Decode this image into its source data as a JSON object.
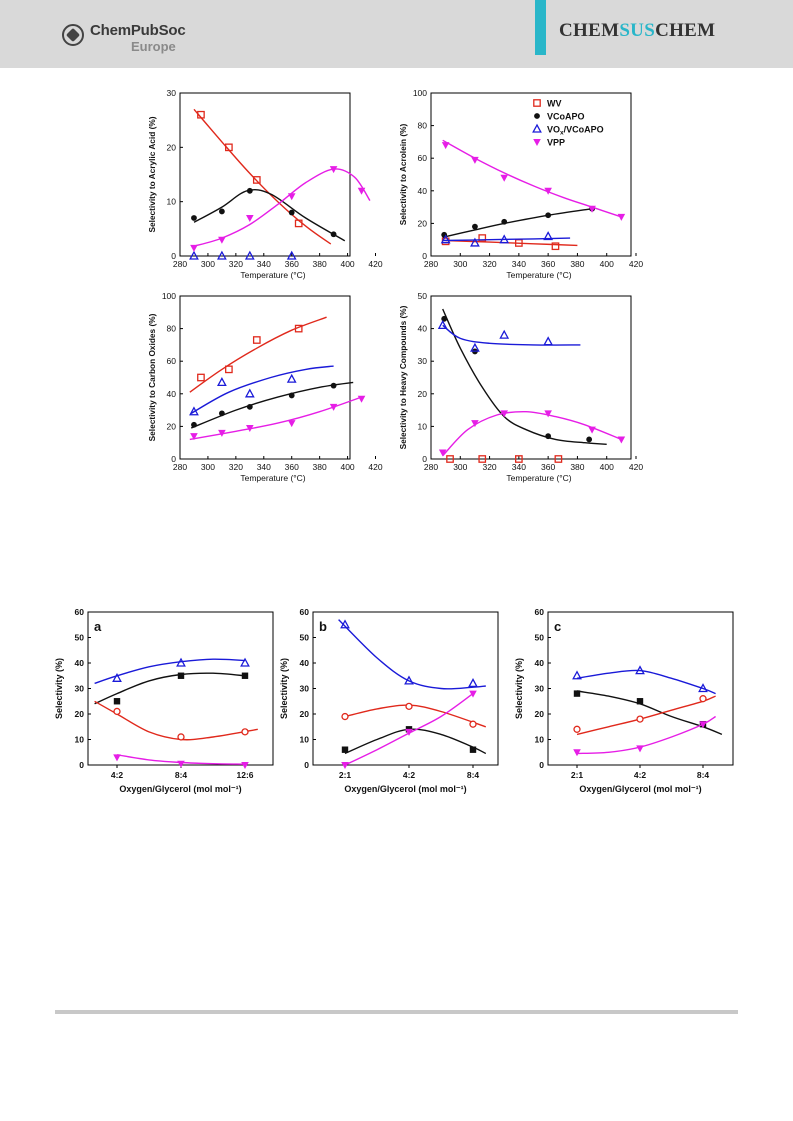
{
  "header": {
    "brand_top": "ChemPubSoc",
    "brand_bottom": "Europe",
    "journal_left": "CHEM",
    "journal_mid": "SUS",
    "journal_right": "CHEM",
    "accent_color": "#29b6c9"
  },
  "chart_data": [
    {
      "id": "acrylic",
      "type": "scatter",
      "xlabel": "Temperature (°C)",
      "ylabel": "Selectivity to Acrylic Acid (%)",
      "xlim": [
        280,
        420
      ],
      "ylim": [
        0,
        30
      ],
      "xticks": [
        280,
        300,
        320,
        340,
        360,
        380,
        400,
        420
      ],
      "yticks": [
        0,
        10,
        20,
        30
      ],
      "series": [
        {
          "name": "WV",
          "marker": "open-square",
          "color": "#e0291c",
          "x": [
            295,
            315,
            335,
            365
          ],
          "y": [
            26,
            20,
            14,
            6
          ],
          "fit_x": [
            290,
            310,
            330,
            350,
            370,
            388
          ],
          "fit_y": [
            27,
            21,
            15.2,
            10,
            5.5,
            2.2
          ]
        },
        {
          "name": "VCoAPO",
          "marker": "filled-circle",
          "color": "#111111",
          "x": [
            290,
            310,
            330,
            360,
            390
          ],
          "y": [
            7,
            8.2,
            12,
            8,
            4
          ],
          "fit_x": [
            290,
            310,
            328,
            345,
            370,
            398
          ],
          "fit_y": [
            6.2,
            9,
            12,
            11.4,
            7,
            2.8
          ]
        },
        {
          "name": "VOx/VCoAPO",
          "marker": "open-triangle",
          "color": "#1a1ad8",
          "x": [
            290,
            310,
            330,
            360
          ],
          "y": [
            0,
            0,
            0,
            0
          ],
          "fit_x": [],
          "fit_y": []
        },
        {
          "name": "VPP",
          "marker": "filled-triangle-down",
          "color": "#e61ee6",
          "x": [
            290,
            310,
            330,
            360,
            390,
            410
          ],
          "y": [
            1.5,
            3,
            7,
            11,
            16,
            12
          ],
          "fit_x": [
            290,
            310,
            330,
            350,
            370,
            390,
            405,
            416
          ],
          "fit_y": [
            1.8,
            3.3,
            5.8,
            9.5,
            13.5,
            16,
            14.5,
            10.2
          ]
        }
      ]
    },
    {
      "id": "acrolein",
      "type": "scatter",
      "xlabel": "Temperature (°C)",
      "ylabel": "Selectivity to Acrolein (%)",
      "xlim": [
        280,
        420
      ],
      "ylim": [
        0,
        100
      ],
      "xticks": [
        280,
        300,
        320,
        340,
        360,
        380,
        400,
        420
      ],
      "yticks": [
        0,
        20,
        40,
        60,
        80,
        100
      ],
      "legend": "top-right",
      "series": [
        {
          "name": "WV",
          "marker": "open-square",
          "color": "#e0291c",
          "x": [
            290,
            315,
            340,
            365
          ],
          "y": [
            9,
            11,
            8,
            6
          ],
          "fit_x": [
            290,
            320,
            350,
            380
          ],
          "fit_y": [
            9.5,
            8.5,
            7.5,
            6.5
          ]
        },
        {
          "name": "VCoAPO",
          "marker": "filled-circle",
          "color": "#111111",
          "x": [
            289,
            310,
            330,
            360,
            390
          ],
          "y": [
            13,
            18,
            21,
            25,
            29
          ],
          "fit_x": [
            288,
            310,
            330,
            360,
            390
          ],
          "fit_y": [
            11.5,
            16,
            20,
            25,
            29
          ]
        },
        {
          "name": "VOx/VCoAPO",
          "marker": "open-triangle",
          "color": "#1a1ad8",
          "x": [
            290,
            310,
            330,
            360
          ],
          "y": [
            10,
            8,
            10,
            12
          ],
          "fit_x": [
            288,
            320,
            350,
            375
          ],
          "fit_y": [
            9.5,
            10,
            10.5,
            11
          ]
        },
        {
          "name": "VPP",
          "marker": "filled-triangle-down",
          "color": "#e61ee6",
          "x": [
            290,
            310,
            330,
            360,
            390,
            410
          ],
          "y": [
            68,
            59,
            48,
            40,
            29,
            24
          ],
          "fit_x": [
            288,
            310,
            330,
            350,
            370,
            390,
            410
          ],
          "fit_y": [
            71,
            60,
            51,
            43,
            36,
            30,
            24
          ]
        }
      ]
    },
    {
      "id": "carbon-oxides",
      "type": "scatter",
      "xlabel": "Temperature (°C)",
      "ylabel": "Selectivity to Carbon Oxides (%)",
      "xlim": [
        280,
        420
      ],
      "ylim": [
        0,
        100
      ],
      "xticks": [
        280,
        300,
        320,
        340,
        360,
        380,
        400,
        420
      ],
      "yticks": [
        0,
        20,
        40,
        60,
        80,
        100
      ],
      "series": [
        {
          "name": "WV",
          "marker": "open-square",
          "color": "#e0291c",
          "x": [
            295,
            315,
            335,
            365
          ],
          "y": [
            50,
            55,
            73,
            80
          ],
          "fit_x": [
            287,
            310,
            335,
            360,
            385
          ],
          "fit_y": [
            41,
            55,
            68,
            79,
            87
          ]
        },
        {
          "name": "VCoAPO",
          "marker": "filled-circle",
          "color": "#111111",
          "x": [
            290,
            310,
            330,
            360,
            390
          ],
          "y": [
            21,
            28,
            32,
            39,
            45
          ],
          "fit_x": [
            288,
            320,
            350,
            380,
            404
          ],
          "fit_y": [
            19,
            30,
            38,
            44,
            47
          ]
        },
        {
          "name": "VOx/VCoAPO",
          "marker": "open-triangle",
          "color": "#1a1ad8",
          "x": [
            290,
            310,
            330,
            360
          ],
          "y": [
            29,
            47,
            40,
            49
          ],
          "fit_x": [
            288,
            315,
            345,
            370,
            390
          ],
          "fit_y": [
            28,
            41,
            50,
            55,
            57
          ]
        },
        {
          "name": "VPP",
          "marker": "filled-triangle-down",
          "color": "#e61ee6",
          "x": [
            290,
            310,
            330,
            360,
            390,
            410
          ],
          "y": [
            14,
            16,
            19,
            22,
            32,
            37
          ],
          "fit_x": [
            287,
            320,
            350,
            380,
            410
          ],
          "fit_y": [
            12,
            17,
            22,
            29,
            38
          ]
        }
      ]
    },
    {
      "id": "heavy",
      "type": "scatter",
      "xlabel": "Temperature (°C)",
      "ylabel": "Selectivity to Heavy Compounds (%)",
      "xlim": [
        280,
        420
      ],
      "ylim": [
        0,
        50
      ],
      "xticks": [
        280,
        300,
        320,
        340,
        360,
        380,
        400,
        420
      ],
      "yticks": [
        0,
        10,
        20,
        30,
        40,
        50
      ],
      "series": [
        {
          "name": "WV",
          "marker": "open-square",
          "color": "#e0291c",
          "x": [
            293,
            315,
            340,
            367
          ],
          "y": [
            0,
            0,
            0,
            0
          ],
          "fit_x": [],
          "fit_y": []
        },
        {
          "name": "VCoAPO",
          "marker": "filled-circle",
          "color": "#111111",
          "x": [
            289,
            310,
            360,
            388
          ],
          "y": [
            43,
            33,
            7,
            6
          ],
          "fit_x": [
            288,
            300,
            315,
            330,
            345,
            365,
            385,
            400
          ],
          "fit_y": [
            46,
            34,
            22,
            13,
            9,
            6,
            5,
            4.5
          ]
        },
        {
          "name": "VOx/VCoAPO",
          "marker": "open-triangle",
          "color": "#1a1ad8",
          "x": [
            288,
            310,
            330,
            360
          ],
          "y": [
            41,
            34,
            38,
            36
          ],
          "fit_x": [
            288,
            300,
            320,
            350,
            382
          ],
          "fit_y": [
            41,
            37,
            35.5,
            35,
            35
          ]
        },
        {
          "name": "VPP",
          "marker": "filled-triangle-down",
          "color": "#e61ee6",
          "x": [
            288,
            310,
            330,
            360,
            390,
            410
          ],
          "y": [
            2,
            11,
            14,
            14,
            9,
            6
          ],
          "fit_x": [
            288,
            305,
            325,
            345,
            365,
            385,
            410
          ],
          "fit_y": [
            1,
            9,
            13.5,
            14.5,
            13,
            10.5,
            6
          ]
        }
      ]
    },
    {
      "id": "panel-a",
      "type": "scatter",
      "panel_label": "a",
      "xlabel": "Oxygen/Glycerol (mol mol⁻¹)",
      "ylabel": "Selectivity (%)",
      "categories": [
        "4:2",
        "8:4",
        "12:6"
      ],
      "ylim": [
        0,
        60
      ],
      "yticks": [
        0,
        10,
        20,
        30,
        40,
        50,
        60
      ],
      "series": [
        {
          "marker": "filled-square",
          "color": "#111111",
          "values": [
            25,
            35,
            35
          ],
          "fit": [
            [
              -0.35,
              24
            ],
            [
              0,
              28
            ],
            [
              0.5,
              33
            ],
            [
              1,
              35.5
            ],
            [
              1.5,
              36
            ],
            [
              2,
              35
            ]
          ]
        },
        {
          "marker": "open-triangle",
          "color": "#1a1ad8",
          "values": [
            34,
            40,
            40
          ],
          "fit": [
            [
              -0.35,
              32
            ],
            [
              0,
              35
            ],
            [
              0.5,
              38.5
            ],
            [
              1,
              40.5
            ],
            [
              1.5,
              41.5
            ],
            [
              2,
              41
            ]
          ]
        },
        {
          "marker": "open-circle",
          "color": "#e0291c",
          "values": [
            21,
            11,
            13
          ],
          "fit": [
            [
              -0.35,
              25
            ],
            [
              0,
              20
            ],
            [
              0.5,
              13
            ],
            [
              1,
              10
            ],
            [
              1.5,
              11
            ],
            [
              2.2,
              14
            ]
          ]
        },
        {
          "marker": "filled-triangle-down",
          "color": "#e61ee6",
          "values": [
            3,
            0.5,
            0
          ],
          "fit": [
            [
              0,
              4
            ],
            [
              0.5,
              2
            ],
            [
              1,
              1
            ],
            [
              1.5,
              0.5
            ],
            [
              2,
              0.3
            ]
          ]
        }
      ]
    },
    {
      "id": "panel-b",
      "type": "scatter",
      "panel_label": "b",
      "xlabel": "Oxygen/Glycerol (mol mol⁻¹)",
      "ylabel": "Selectivity (%)",
      "categories": [
        "2:1",
        "4:2",
        "8:4"
      ],
      "ylim": [
        0,
        60
      ],
      "yticks": [
        0,
        10,
        20,
        30,
        40,
        50,
        60
      ],
      "series": [
        {
          "marker": "open-triangle",
          "color": "#1a1ad8",
          "values": [
            55,
            33,
            32
          ],
          "fit": [
            [
              -0.1,
              57
            ],
            [
              0.5,
              42
            ],
            [
              1,
              33
            ],
            [
              1.5,
              30
            ],
            [
              2,
              30.5
            ],
            [
              2.2,
              31
            ]
          ]
        },
        {
          "marker": "open-circle",
          "color": "#e0291c",
          "values": [
            19,
            23,
            16
          ],
          "fit": [
            [
              0,
              19
            ],
            [
              0.5,
              22
            ],
            [
              1,
              23.5
            ],
            [
              1.5,
              21
            ],
            [
              2.2,
              15
            ]
          ]
        },
        {
          "marker": "filled-square",
          "color": "#111111",
          "values": [
            6,
            14,
            6
          ],
          "fit": [
            [
              0,
              4.5
            ],
            [
              0.5,
              10
            ],
            [
              1,
              14
            ],
            [
              1.5,
              12
            ],
            [
              2,
              7
            ],
            [
              2.2,
              4.5
            ]
          ]
        },
        {
          "marker": "filled-triangle-down",
          "color": "#e61ee6",
          "values": [
            0,
            13,
            28
          ],
          "fit": [
            [
              0,
              0
            ],
            [
              0.5,
              6
            ],
            [
              1,
              12.5
            ],
            [
              1.5,
              19
            ],
            [
              2,
              28
            ]
          ]
        }
      ]
    },
    {
      "id": "panel-c",
      "type": "scatter",
      "panel_label": "c",
      "xlabel": "Oxygen/Glycerol (mol mol⁻¹)",
      "ylabel": "Selectivity (%)",
      "categories": [
        "2:1",
        "4:2",
        "8:4"
      ],
      "ylim": [
        0,
        60
      ],
      "yticks": [
        0,
        10,
        20,
        30,
        40,
        50,
        60
      ],
      "series": [
        {
          "marker": "open-triangle",
          "color": "#1a1ad8",
          "values": [
            35,
            37,
            30
          ],
          "fit": [
            [
              0,
              34
            ],
            [
              0.5,
              36
            ],
            [
              1,
              37
            ],
            [
              1.5,
              34
            ],
            [
              2,
              30
            ],
            [
              2.2,
              28
            ]
          ]
        },
        {
          "marker": "filled-square",
          "color": "#111111",
          "values": [
            28,
            25,
            16
          ],
          "fit": [
            [
              0,
              29
            ],
            [
              0.5,
              27
            ],
            [
              1,
              24
            ],
            [
              1.5,
              19
            ],
            [
              2,
              15
            ],
            [
              2.3,
              12
            ]
          ]
        },
        {
          "marker": "open-circle",
          "color": "#e0291c",
          "values": [
            14,
            18,
            26
          ],
          "fit": [
            [
              0,
              12
            ],
            [
              0.5,
              15
            ],
            [
              1,
              18
            ],
            [
              1.5,
              21.5
            ],
            [
              2,
              25
            ],
            [
              2.2,
              27
            ]
          ]
        },
        {
          "marker": "filled-triangle-down",
          "color": "#e61ee6",
          "values": [
            5,
            6.5,
            16
          ],
          "fit": [
            [
              0,
              4.5
            ],
            [
              0.5,
              5
            ],
            [
              1,
              7
            ],
            [
              1.5,
              11
            ],
            [
              2,
              16
            ],
            [
              2.2,
              19
            ]
          ]
        }
      ]
    }
  ]
}
